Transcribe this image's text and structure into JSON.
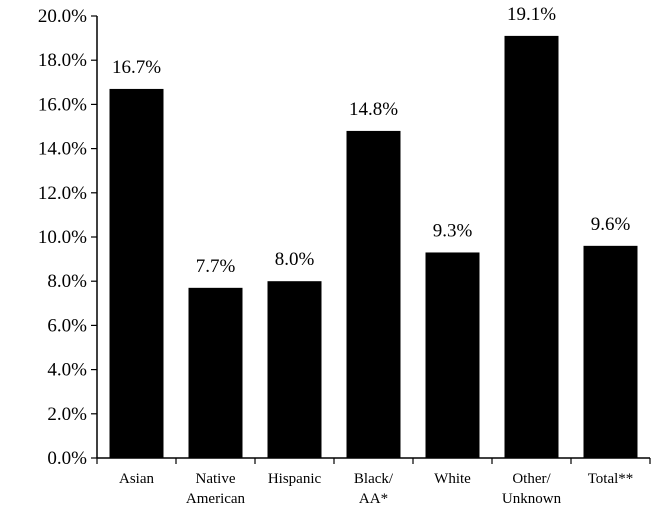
{
  "chart_data": {
    "type": "bar",
    "categories": [
      [
        "Asian"
      ],
      [
        "Native",
        "American"
      ],
      [
        "Hispanic"
      ],
      [
        "Black/",
        "AA*"
      ],
      [
        "White"
      ],
      [
        "Other/",
        "Unknown"
      ],
      [
        "Total**"
      ]
    ],
    "values": [
      16.7,
      7.7,
      8.0,
      14.8,
      9.3,
      19.1,
      9.6
    ],
    "data_labels": [
      "16.7%",
      "7.7%",
      "8.0%",
      "14.8%",
      "9.3%",
      "19.1%",
      "9.6%"
    ],
    "y_ticks": [
      "0.0%",
      "2.0%",
      "4.0%",
      "6.0%",
      "8.0%",
      "10.0%",
      "12.0%",
      "14.0%",
      "16.0%",
      "18.0%",
      "20.0%"
    ],
    "ylim": [
      0,
      20
    ],
    "bar_color": "#000000",
    "grid": false,
    "legend": "none"
  }
}
